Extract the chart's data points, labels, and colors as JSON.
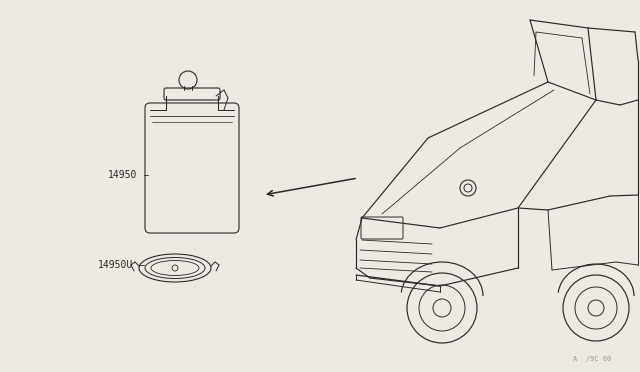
{
  "bg_color": "#ede9e3",
  "line_color": "#2a2a2a",
  "label_color": "#2a2a2a",
  "watermark": "A  /9C 00  ",
  "label_14950": "14950",
  "label_14950U": "14950U",
  "figsize": [
    6.4,
    3.72
  ],
  "dpi": 100
}
